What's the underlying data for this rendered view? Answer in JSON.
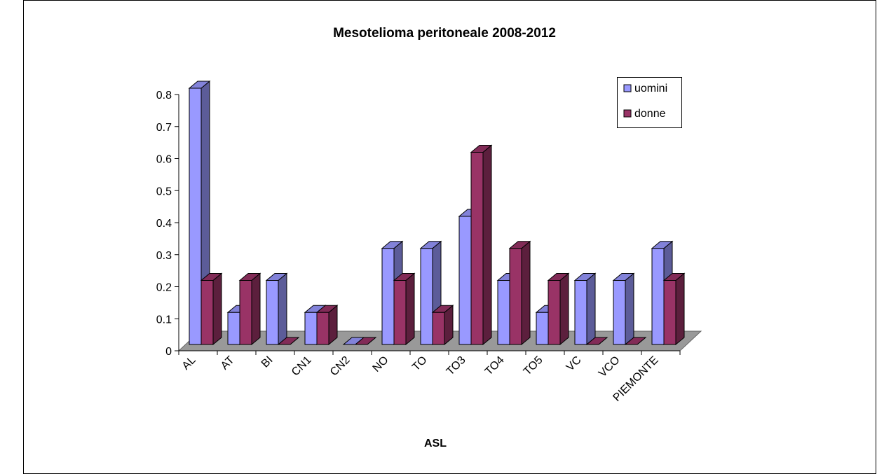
{
  "chart_data": {
    "type": "bar3d",
    "title": "Mesotelioma peritoneale 2008-2012",
    "x_label": "ASL",
    "categories": [
      "AL",
      "AT",
      "BI",
      "CN1",
      "CN2",
      "NO",
      "TO",
      "TO3",
      "TO4",
      "TO5",
      "VC",
      "VCO",
      "PIEMONTE"
    ],
    "series": [
      {
        "name": "uomini",
        "color": "#9999ff",
        "values": [
          0.8,
          0.1,
          0.2,
          0.1,
          0,
          0.3,
          0.3,
          0.4,
          0.2,
          0.1,
          0.2,
          0.2,
          0.3
        ]
      },
      {
        "name": "donne",
        "color": "#993366",
        "values": [
          0.2,
          0.2,
          0,
          0.1,
          0,
          0.2,
          0.1,
          0.6,
          0.3,
          0.2,
          0,
          0,
          0.2
        ]
      }
    ],
    "ylim": [
      0,
      0.8
    ],
    "yticks": [
      0,
      0.1,
      0.2,
      0.3,
      0.4,
      0.5,
      0.6,
      0.7,
      0.8
    ],
    "legend": "top-right",
    "floor_color": "#999999"
  }
}
